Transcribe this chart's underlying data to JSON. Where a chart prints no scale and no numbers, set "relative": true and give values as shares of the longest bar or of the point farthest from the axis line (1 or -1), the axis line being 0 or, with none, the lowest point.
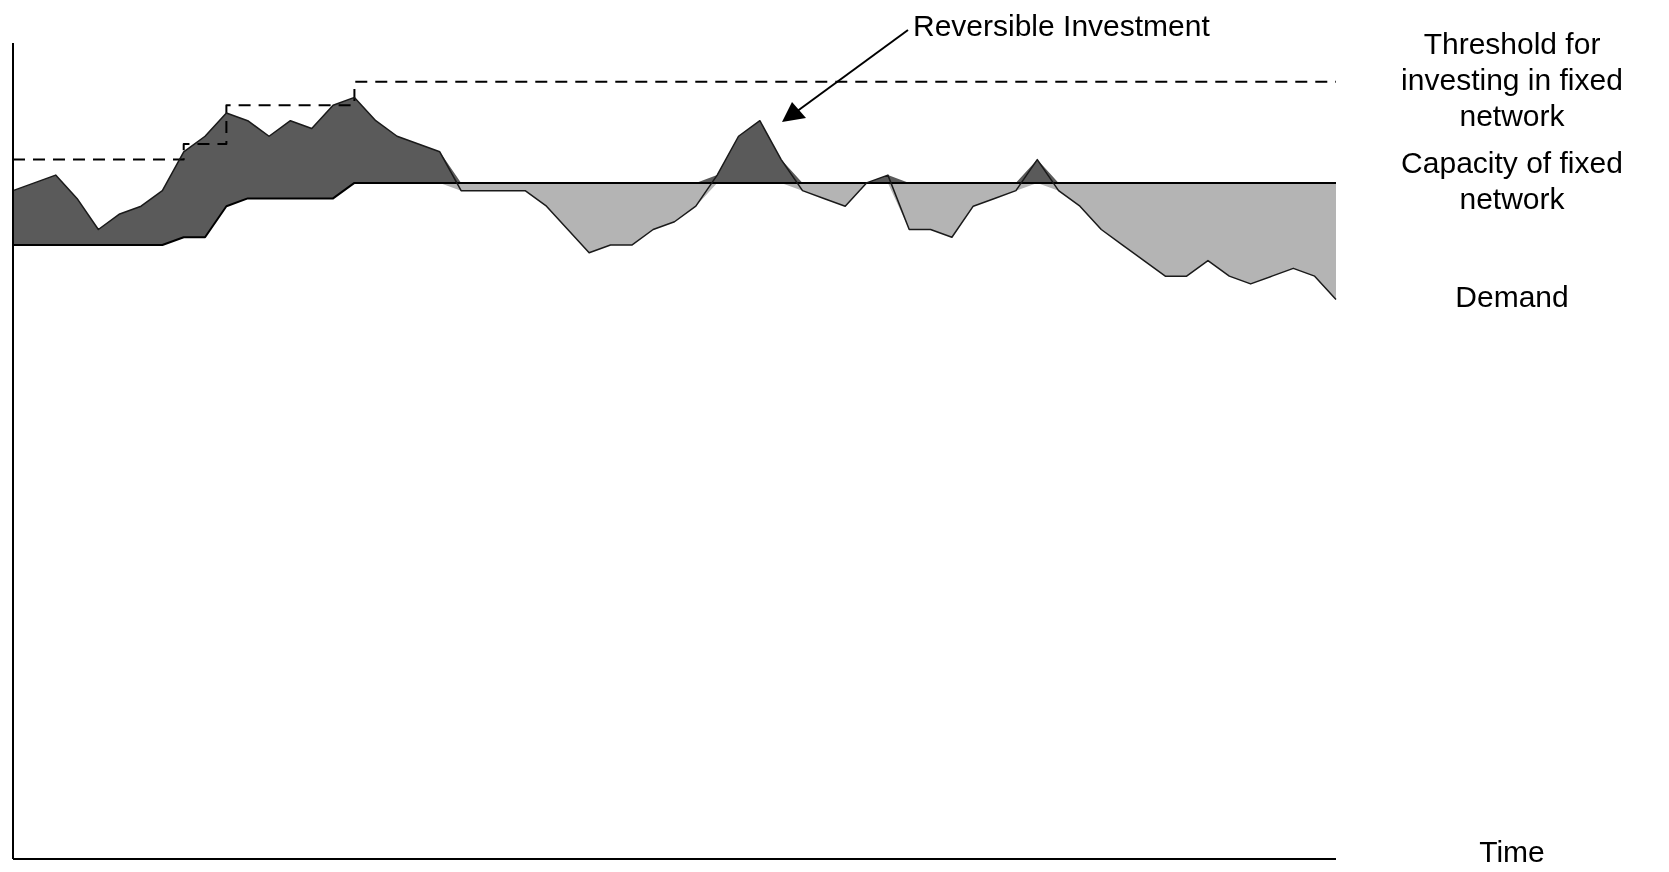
{
  "chart_data": {
    "type": "line",
    "relative": true,
    "xlabel": "Time",
    "tick_labels": false,
    "marker": "none",
    "annotations": [
      "Reversible Investment"
    ],
    "categories": [
      null,
      null,
      null,
      null,
      null,
      null,
      null,
      null,
      null,
      null,
      null,
      null,
      null,
      null,
      null,
      null,
      null,
      null,
      null,
      null,
      null,
      null,
      null,
      null,
      null,
      null,
      null,
      null,
      null,
      null,
      null,
      null,
      null,
      null,
      null,
      null,
      null,
      null,
      null,
      null,
      null,
      null,
      null,
      null,
      null,
      null,
      null,
      null,
      null,
      null,
      null,
      null,
      null,
      null,
      null,
      null,
      null,
      null,
      null,
      null,
      null,
      null,
      null
    ],
    "series": [
      {
        "name": "Threshold for investing in fixed network",
        "type": "step",
        "color": "#000000",
        "line_style": "dashed",
        "values": [
          0.9,
          0.9,
          0.9,
          0.9,
          0.9,
          0.9,
          0.9,
          0.9,
          0.92,
          0.92,
          0.97,
          0.97,
          0.97,
          0.97,
          0.97,
          0.97,
          1,
          1,
          1,
          1,
          1,
          1,
          1,
          1,
          1,
          1,
          1,
          1,
          1,
          1,
          1,
          1,
          1,
          1,
          1,
          1,
          1,
          1,
          1,
          1,
          1,
          1,
          1,
          1,
          1,
          1,
          1,
          1,
          1,
          1,
          1,
          1,
          1,
          1,
          1,
          1,
          1,
          1,
          1,
          1,
          1,
          1,
          1
        ]
      },
      {
        "name": "Capacity of fixed network",
        "type": "line",
        "color": "#000000",
        "line_style": "solid",
        "values": [
          0.79,
          0.79,
          0.79,
          0.79,
          0.79,
          0.79,
          0.79,
          0.79,
          0.8,
          0.8,
          0.84,
          0.85,
          0.85,
          0.85,
          0.85,
          0.85,
          0.87,
          0.87,
          0.87,
          0.87,
          0.87,
          0.87,
          0.87,
          0.87,
          0.87,
          0.87,
          0.87,
          0.87,
          0.87,
          0.87,
          0.87,
          0.87,
          0.87,
          0.87,
          0.87,
          0.87,
          0.87,
          0.87,
          0.87,
          0.87,
          0.87,
          0.87,
          0.87,
          0.87,
          0.87,
          0.87,
          0.87,
          0.87,
          0.87,
          0.87,
          0.87,
          0.87,
          0.87,
          0.87,
          0.87,
          0.87,
          0.87,
          0.87,
          0.87,
          0.87,
          0.87,
          0.87,
          0.87
        ]
      },
      {
        "name": "Demand",
        "type": "line",
        "color": "#1a1a1a",
        "line_style": "solid",
        "values": [
          0.86,
          0.87,
          0.88,
          0.85,
          0.81,
          0.83,
          0.84,
          0.86,
          0.91,
          0.93,
          0.96,
          0.95,
          0.93,
          0.95,
          0.94,
          0.97,
          0.98,
          0.95,
          0.93,
          0.92,
          0.91,
          0.86,
          0.86,
          0.86,
          0.86,
          0.84,
          0.81,
          0.78,
          0.79,
          0.79,
          0.81,
          0.82,
          0.84,
          0.88,
          0.93,
          0.95,
          0.9,
          0.86,
          0.85,
          0.84,
          0.87,
          0.88,
          0.81,
          0.81,
          0.8,
          0.84,
          0.85,
          0.86,
          0.9,
          0.86,
          0.84,
          0.81,
          0.79,
          0.77,
          0.75,
          0.75,
          0.77,
          0.75,
          0.74,
          0.75,
          0.76,
          0.75,
          0.72
        ]
      }
    ]
  }
}
